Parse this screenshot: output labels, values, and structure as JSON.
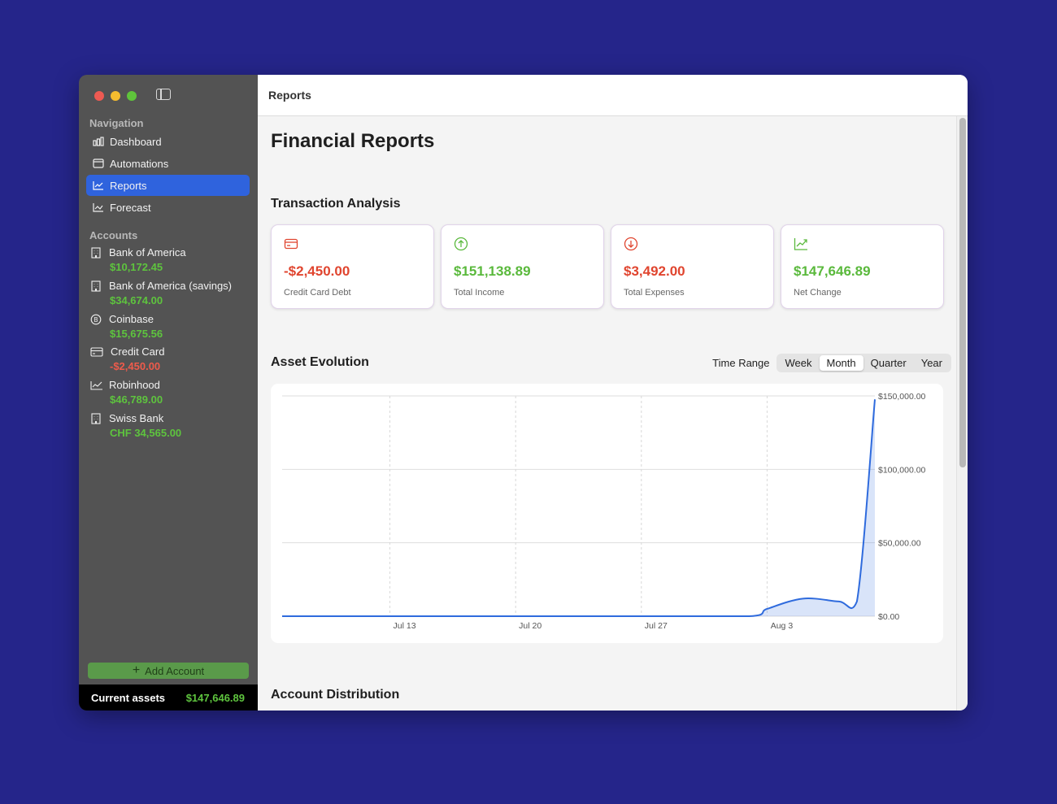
{
  "window": {
    "title": "Reports"
  },
  "sidebar": {
    "navigation_title": "Navigation",
    "nav_items": [
      {
        "label": "Dashboard",
        "icon": "bar-chart-icon"
      },
      {
        "label": "Automations",
        "icon": "calendar-icon"
      },
      {
        "label": "Reports",
        "icon": "trend-up-icon",
        "active": true
      },
      {
        "label": "Forecast",
        "icon": "forecast-icon"
      }
    ],
    "accounts_title": "Accounts",
    "accounts": [
      {
        "name": "Bank of America",
        "balance": "$10,172.45",
        "icon": "building-icon",
        "tone": "pos"
      },
      {
        "name": "Bank of America (savings)",
        "balance": "$34,674.00",
        "icon": "building-icon",
        "tone": "pos"
      },
      {
        "name": "Coinbase",
        "balance": "$15,675.56",
        "icon": "bitcoin-icon",
        "tone": "pos"
      },
      {
        "name": "Credit Card",
        "balance": "-$2,450.00",
        "icon": "credit-card-icon",
        "tone": "neg"
      },
      {
        "name": "Robinhood",
        "balance": "$46,789.00",
        "icon": "trend-up-icon",
        "tone": "pos"
      },
      {
        "name": "Swiss Bank",
        "balance": "CHF 34,565.00",
        "icon": "building-icon",
        "tone": "pos"
      }
    ],
    "add_account_label": "Add Account",
    "footer": {
      "label": "Current assets",
      "value": "$147,646.89"
    }
  },
  "main": {
    "page_title": "Financial Reports",
    "transaction_analysis_title": "Transaction Analysis",
    "cards": [
      {
        "value": "-$2,450.00",
        "label": "Credit Card Debt",
        "icon": "credit-card-icon",
        "color": "#e0452f"
      },
      {
        "value": "$151,138.89",
        "label": "Total Income",
        "icon": "arrow-up-circle-icon",
        "color": "#5ab93c"
      },
      {
        "value": "$3,492.00",
        "label": "Total Expenses",
        "icon": "arrow-down-circle-icon",
        "color": "#e0452f"
      },
      {
        "value": "$147,646.89",
        "label": "Net Change",
        "icon": "trend-up-icon",
        "color": "#5ab93c"
      }
    ],
    "asset_evolution_title": "Asset Evolution",
    "time_range": {
      "label": "Time Range",
      "options": [
        "Week",
        "Month",
        "Quarter",
        "Year"
      ],
      "selected": "Month"
    },
    "account_distribution_title": "Account Distribution"
  },
  "chart_data": {
    "type": "area",
    "x_ticks": [
      "Jul 13",
      "Jul 20",
      "Jul 27",
      "Aug 3"
    ],
    "y_ticks": [
      "$0.00",
      "$50,000.00",
      "$100,000.00",
      "$150,000.00"
    ],
    "ylim": [
      0,
      150000
    ],
    "x": [
      "Jul 7",
      "Jul 13",
      "Jul 20",
      "Jul 27",
      "Aug 2",
      "Aug 3",
      "Aug 5",
      "Aug 7",
      "Aug 8",
      "Aug 9"
    ],
    "series": [
      {
        "values": [
          0,
          0,
          0,
          0,
          0,
          5000,
          12000,
          10000,
          10000,
          147646.89
        ]
      }
    ],
    "color": "#2f6bdd",
    "grid": true
  }
}
